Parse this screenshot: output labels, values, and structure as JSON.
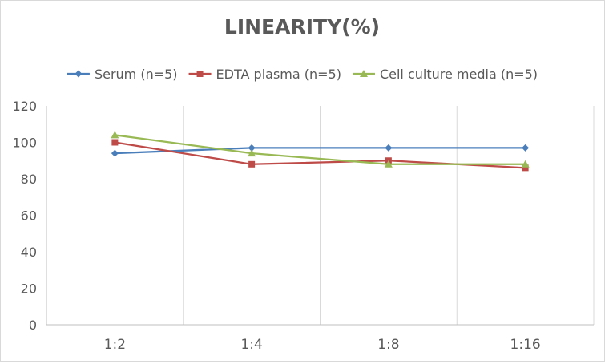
{
  "chart_data": {
    "type": "line",
    "title": "LINEARITY(%)",
    "xlabel": "",
    "ylabel": "",
    "categories": [
      "1:2",
      "1:4",
      "1:8",
      "1:16"
    ],
    "y_ticks": [
      "0",
      "20",
      "40",
      "60",
      "80",
      "100",
      "120"
    ],
    "ylim": [
      0,
      120
    ],
    "grid": "vertical",
    "legend_position": "top",
    "series": [
      {
        "name": "Serum (n=5)",
        "color": "#4a7ebb",
        "marker": "diamond",
        "values": [
          94,
          97,
          97,
          97
        ]
      },
      {
        "name": "EDTA plasma (n=5)",
        "color": "#be4b48",
        "marker": "square",
        "values": [
          100,
          88,
          90,
          86
        ]
      },
      {
        "name": "Cell culture media (n=5)",
        "color": "#98b954",
        "marker": "triangle",
        "values": [
          104,
          94,
          88,
          88
        ]
      }
    ]
  }
}
